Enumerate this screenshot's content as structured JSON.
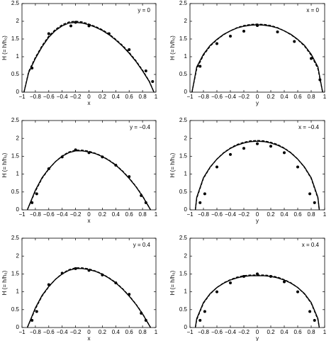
{
  "chart_data": [
    {
      "type": "line",
      "annotation": "y = 0",
      "xlabel": "x",
      "ylabel": "H (= h/h₀)",
      "xlim": [
        -1,
        1
      ],
      "ylim": [
        0,
        2.5
      ],
      "xticks": [
        {
          "value": -1,
          "label": "−1"
        },
        {
          "value": -0.8,
          "label": "−0.8"
        },
        {
          "value": -0.6,
          "label": "−0.6"
        },
        {
          "value": -0.4,
          "label": "−0.4"
        },
        {
          "value": -0.2,
          "label": "−0.2"
        },
        0,
        0.2,
        0.4,
        0.6,
        0.8,
        1
      ],
      "yticks": [
        0,
        0.5,
        1,
        1.5,
        2,
        2.5
      ],
      "series": [
        {
          "color": "#000000",
          "style": "solid",
          "x": [
            -0.97,
            -0.9,
            -0.8,
            -0.7,
            -0.6,
            -0.5,
            -0.4,
            -0.3,
            -0.2,
            -0.1,
            0,
            0.1,
            0.2,
            0.3,
            0.4,
            0.5,
            0.6,
            0.7,
            0.8,
            0.9,
            0.97
          ],
          "values": [
            0,
            0.55,
            0.95,
            1.28,
            1.55,
            1.74,
            1.87,
            1.95,
            1.97,
            1.95,
            1.9,
            1.83,
            1.74,
            1.62,
            1.47,
            1.3,
            1.1,
            0.87,
            0.6,
            0.3,
            0
          ]
        },
        {
          "color": "#000000",
          "style": "dashed",
          "x": [
            -0.97,
            -0.9,
            -0.8,
            -0.7,
            -0.6,
            -0.5,
            -0.4,
            -0.3,
            -0.2,
            -0.1,
            0,
            0.1,
            0.2,
            0.3,
            0.4,
            0.5,
            0.6,
            0.7,
            0.8,
            0.9,
            0.97
          ],
          "values": [
            0,
            0.58,
            0.98,
            1.31,
            1.58,
            1.77,
            1.9,
            1.98,
            2.0,
            1.98,
            1.92,
            1.85,
            1.76,
            1.64,
            1.49,
            1.32,
            1.12,
            0.89,
            0.62,
            0.31,
            0
          ]
        },
        {
          "color": "#000000",
          "style": "markers",
          "x": [
            -0.85,
            -0.6,
            -0.27,
            -0.2,
            0,
            0.3,
            0.6,
            0.85,
            0.95
          ],
          "values": [
            0.68,
            1.65,
            1.87,
            1.97,
            1.87,
            1.65,
            1.2,
            0.6,
            0.3
          ]
        }
      ]
    },
    {
      "type": "line",
      "annotation": "x = 0",
      "xlabel": "y",
      "ylabel": "H (= h/h₀)",
      "xlim": [
        -1,
        1
      ],
      "ylim": [
        0,
        2.5
      ],
      "xticks": [
        {
          "value": -1,
          "label": "−1"
        },
        {
          "value": -0.8,
          "label": "−0.8"
        },
        {
          "value": -0.6,
          "label": "−0.6"
        },
        {
          "value": -0.4,
          "label": "−0.4"
        },
        {
          "value": -0.2,
          "label": "−0.2"
        },
        0,
        0.2,
        0.4,
        0.6,
        0.8,
        1
      ],
      "yticks": [
        0,
        0.5,
        1,
        1.5,
        2,
        2.5
      ],
      "series": [
        {
          "color": "#000000",
          "style": "solid",
          "x": [
            -0.97,
            -0.9,
            -0.8,
            -0.7,
            -0.6,
            -0.5,
            -0.4,
            -0.3,
            -0.2,
            -0.1,
            0,
            0.1,
            0.2,
            0.3,
            0.4,
            0.5,
            0.6,
            0.7,
            0.8,
            0.9,
            0.97
          ],
          "values": [
            0,
            0.71,
            1.07,
            1.32,
            1.49,
            1.63,
            1.73,
            1.81,
            1.86,
            1.89,
            1.9,
            1.89,
            1.86,
            1.81,
            1.73,
            1.63,
            1.49,
            1.32,
            1.07,
            0.71,
            0
          ]
        },
        {
          "color": "#000000",
          "style": "dashed",
          "x": [
            -0.97,
            -0.9,
            -0.8,
            -0.7,
            -0.6,
            -0.5,
            -0.4,
            -0.3,
            -0.2,
            -0.1,
            0,
            0.1,
            0.2,
            0.3,
            0.4,
            0.5,
            0.6,
            0.7,
            0.8,
            0.9,
            0.97
          ],
          "values": [
            0,
            0.66,
            1.04,
            1.3,
            1.48,
            1.62,
            1.73,
            1.82,
            1.88,
            1.91,
            1.92,
            1.91,
            1.88,
            1.82,
            1.73,
            1.62,
            1.48,
            1.3,
            1.04,
            0.66,
            0
          ]
        },
        {
          "color": "#000000",
          "style": "markers",
          "x": [
            -0.85,
            -0.6,
            -0.4,
            -0.2,
            0,
            0.3,
            0.55,
            0.8,
            0.93
          ],
          "values": [
            0.73,
            1.37,
            1.58,
            1.72,
            1.88,
            1.7,
            1.43,
            0.95,
            0.35
          ]
        }
      ]
    },
    {
      "type": "line",
      "annotation": "y = −0.4",
      "xlabel": "x",
      "ylabel": "H (= h/h₀)",
      "xlim": [
        -1,
        1
      ],
      "ylim": [
        0,
        2.5
      ],
      "xticks": [
        {
          "value": -1,
          "label": "−1"
        },
        {
          "value": -0.8,
          "label": "−0.8"
        },
        {
          "value": -0.6,
          "label": "−0.6"
        },
        {
          "value": -0.4,
          "label": "−0.4"
        },
        {
          "value": -0.2,
          "label": "−0.2"
        },
        0,
        0.2,
        0.4,
        0.6,
        0.8,
        1
      ],
      "yticks": [
        0,
        0.5,
        1,
        1.5,
        2,
        2.5
      ],
      "series": [
        {
          "color": "#000000",
          "style": "solid",
          "x": [
            -0.92,
            -0.8,
            -0.7,
            -0.6,
            -0.5,
            -0.4,
            -0.3,
            -0.2,
            -0.1,
            0,
            0.1,
            0.2,
            0.3,
            0.4,
            0.5,
            0.6,
            0.7,
            0.8,
            0.92
          ],
          "values": [
            0,
            0.55,
            0.9,
            1.15,
            1.35,
            1.5,
            1.6,
            1.65,
            1.65,
            1.62,
            1.57,
            1.49,
            1.38,
            1.25,
            1.08,
            0.88,
            0.65,
            0.38,
            0
          ]
        },
        {
          "color": "#000000",
          "style": "dashed",
          "x": [
            -0.92,
            -0.8,
            -0.7,
            -0.6,
            -0.5,
            -0.4,
            -0.3,
            -0.2,
            -0.1,
            0,
            0.1,
            0.2,
            0.3,
            0.4,
            0.5,
            0.6,
            0.7,
            0.8,
            0.92
          ],
          "values": [
            0,
            0.52,
            0.88,
            1.14,
            1.35,
            1.51,
            1.62,
            1.67,
            1.67,
            1.64,
            1.58,
            1.5,
            1.39,
            1.26,
            1.09,
            0.89,
            0.66,
            0.39,
            0
          ]
        },
        {
          "color": "#000000",
          "style": "markers",
          "x": [
            -0.85,
            -0.78,
            -0.6,
            -0.4,
            -0.2,
            0,
            0.2,
            0.4,
            0.6,
            0.78,
            0.85
          ],
          "values": [
            0.2,
            0.45,
            1.15,
            1.48,
            1.68,
            1.6,
            1.48,
            1.25,
            0.93,
            0.4,
            0.2
          ]
        }
      ]
    },
    {
      "type": "line",
      "annotation": "x = −0.4",
      "xlabel": "y",
      "ylabel": "H (= h/h₀)",
      "xlim": [
        -1,
        1
      ],
      "ylim": [
        0,
        2.5
      ],
      "xticks": [
        {
          "value": -1,
          "label": "−1"
        },
        {
          "value": -0.8,
          "label": "−0.8"
        },
        {
          "value": -0.6,
          "label": "−0.6"
        },
        {
          "value": -0.4,
          "label": "−0.4"
        },
        {
          "value": -0.2,
          "label": "−0.2"
        },
        0,
        0.2,
        0.4,
        0.6,
        0.8,
        1
      ],
      "yticks": [
        0,
        0.5,
        1,
        1.5,
        2,
        2.5
      ],
      "series": [
        {
          "color": "#000000",
          "style": "solid",
          "x": [
            -0.92,
            -0.9,
            -0.8,
            -0.7,
            -0.6,
            -0.5,
            -0.4,
            -0.3,
            -0.2,
            -0.1,
            0,
            0.1,
            0.2,
            0.3,
            0.4,
            0.5,
            0.6,
            0.7,
            0.8,
            0.9,
            0.92
          ],
          "values": [
            0,
            0.35,
            0.9,
            1.2,
            1.42,
            1.59,
            1.72,
            1.81,
            1.87,
            1.91,
            1.92,
            1.91,
            1.87,
            1.81,
            1.72,
            1.59,
            1.42,
            1.2,
            0.9,
            0.35,
            0
          ]
        },
        {
          "color": "#000000",
          "style": "dashed",
          "x": [
            -0.92,
            -0.9,
            -0.8,
            -0.7,
            -0.6,
            -0.5,
            -0.4,
            -0.3,
            -0.2,
            -0.1,
            0,
            0.1,
            0.2,
            0.3,
            0.4,
            0.5,
            0.6,
            0.7,
            0.8,
            0.9,
            0.92
          ],
          "values": [
            0,
            0.32,
            0.88,
            1.19,
            1.42,
            1.6,
            1.73,
            1.83,
            1.89,
            1.93,
            1.94,
            1.93,
            1.89,
            1.83,
            1.73,
            1.6,
            1.42,
            1.19,
            0.88,
            0.32,
            0
          ]
        },
        {
          "color": "#000000",
          "style": "markers",
          "x": [
            -0.85,
            -0.78,
            -0.6,
            -0.4,
            -0.2,
            0,
            0.2,
            0.4,
            0.6,
            0.78,
            0.85
          ],
          "values": [
            0.2,
            0.45,
            1.2,
            1.55,
            1.72,
            1.85,
            1.78,
            1.6,
            1.2,
            0.45,
            0.2
          ]
        }
      ]
    },
    {
      "type": "line",
      "annotation": "y = 0.4",
      "xlabel": "x",
      "ylabel": "H (= h/h₀)",
      "xlim": [
        -1,
        1
      ],
      "ylim": [
        0,
        2.5
      ],
      "xticks": [
        {
          "value": -1,
          "label": "−1"
        },
        {
          "value": -0.8,
          "label": "−0.8"
        },
        {
          "value": -0.6,
          "label": "−0.6"
        },
        {
          "value": -0.4,
          "label": "−0.4"
        },
        {
          "value": -0.2,
          "label": "−0.2"
        },
        0,
        0.2,
        0.4,
        0.6,
        0.8,
        1
      ],
      "yticks": [
        0,
        0.5,
        1,
        1.5,
        2,
        2.5
      ],
      "series": [
        {
          "color": "#000000",
          "style": "solid",
          "x": [
            -0.92,
            -0.8,
            -0.7,
            -0.6,
            -0.5,
            -0.4,
            -0.3,
            -0.2,
            -0.1,
            0,
            0.1,
            0.2,
            0.3,
            0.4,
            0.5,
            0.6,
            0.7,
            0.8,
            0.92
          ],
          "values": [
            0,
            0.55,
            0.9,
            1.15,
            1.35,
            1.5,
            1.6,
            1.65,
            1.65,
            1.62,
            1.57,
            1.49,
            1.38,
            1.25,
            1.08,
            0.88,
            0.65,
            0.38,
            0
          ]
        },
        {
          "color": "#000000",
          "style": "dashed",
          "x": [
            -0.92,
            -0.8,
            -0.7,
            -0.6,
            -0.5,
            -0.4,
            -0.3,
            -0.2,
            -0.1,
            0,
            0.1,
            0.2,
            0.3,
            0.4,
            0.5,
            0.6,
            0.7,
            0.8,
            0.92
          ],
          "values": [
            0,
            0.52,
            0.88,
            1.14,
            1.35,
            1.51,
            1.62,
            1.67,
            1.67,
            1.64,
            1.58,
            1.5,
            1.39,
            1.26,
            1.09,
            0.89,
            0.66,
            0.39,
            0
          ]
        },
        {
          "color": "#000000",
          "style": "markers",
          "x": [
            -0.85,
            -0.78,
            -0.6,
            -0.4,
            -0.2,
            0,
            0.2,
            0.4,
            0.6,
            0.78,
            0.85
          ],
          "values": [
            0.2,
            0.45,
            1.2,
            1.52,
            1.65,
            1.6,
            1.47,
            1.25,
            0.93,
            0.4,
            0.2
          ]
        }
      ]
    },
    {
      "type": "line",
      "annotation": "x = 0.4",
      "xlabel": "y",
      "ylabel": "H (= h/h₀)",
      "xlim": [
        -1,
        1
      ],
      "ylim": [
        0,
        2.5
      ],
      "xticks": [
        {
          "value": -1,
          "label": "−1"
        },
        {
          "value": -0.8,
          "label": "−0.8"
        },
        {
          "value": -0.6,
          "label": "−0.6"
        },
        {
          "value": -0.4,
          "label": "−0.4"
        },
        {
          "value": -0.2,
          "label": "−0.2"
        },
        0,
        0.2,
        0.4,
        0.6,
        0.8,
        1
      ],
      "yticks": [
        0,
        0.5,
        1,
        1.5,
        2,
        2.5
      ],
      "series": [
        {
          "color": "#000000",
          "style": "solid",
          "x": [
            -0.92,
            -0.9,
            -0.8,
            -0.7,
            -0.6,
            -0.5,
            -0.4,
            -0.3,
            -0.2,
            -0.1,
            0,
            0.1,
            0.2,
            0.3,
            0.4,
            0.5,
            0.6,
            0.7,
            0.8,
            0.9,
            0.92
          ],
          "values": [
            0,
            0.25,
            0.7,
            0.95,
            1.12,
            1.24,
            1.33,
            1.39,
            1.43,
            1.45,
            1.45,
            1.45,
            1.43,
            1.39,
            1.33,
            1.24,
            1.12,
            0.95,
            0.7,
            0.25,
            0
          ]
        },
        {
          "color": "#000000",
          "style": "dashed",
          "x": [
            -0.92,
            -0.9,
            -0.8,
            -0.7,
            -0.6,
            -0.5,
            -0.4,
            -0.3,
            -0.2,
            -0.1,
            0,
            0.1,
            0.2,
            0.3,
            0.4,
            0.5,
            0.6,
            0.7,
            0.8,
            0.9,
            0.92
          ],
          "values": [
            0,
            0.22,
            0.68,
            0.94,
            1.12,
            1.25,
            1.34,
            1.41,
            1.45,
            1.47,
            1.47,
            1.47,
            1.45,
            1.41,
            1.34,
            1.25,
            1.12,
            0.94,
            0.68,
            0.22,
            0
          ]
        },
        {
          "color": "#000000",
          "style": "markers",
          "x": [
            -0.85,
            -0.78,
            -0.6,
            -0.4,
            -0.2,
            0,
            0.2,
            0.4,
            0.6,
            0.78,
            0.85
          ],
          "values": [
            0.2,
            0.45,
            1.0,
            1.25,
            1.43,
            1.5,
            1.43,
            1.28,
            1.0,
            0.45,
            0.2
          ]
        }
      ]
    }
  ]
}
